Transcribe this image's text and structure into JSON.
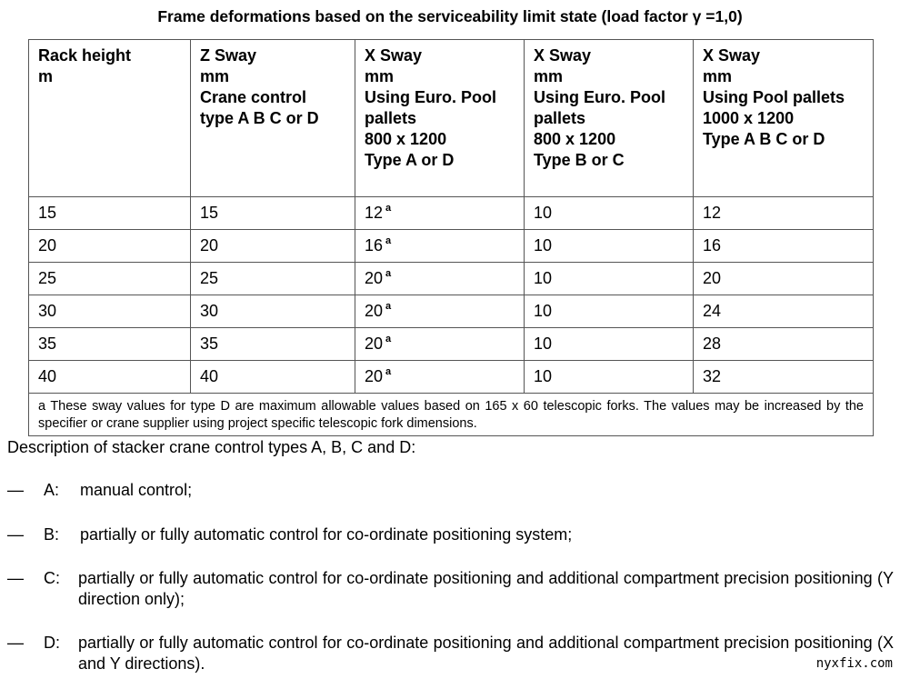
{
  "title": "Frame deformations based on the serviceability limit state (load factor γ =1,0)",
  "table": {
    "headers": [
      "Rack height\nm",
      "Z Sway\nmm\nCrane control\ntype A B C or D",
      "X Sway\nmm\nUsing Euro. Pool\npallets\n800 x 1200\nType A or D",
      "X Sway\nmm\nUsing Euro. Pool\npallets\n800 x 1200\nType B or C",
      "X Sway\nmm\nUsing Pool pallets\n1000 x 1200\nType A B C or D"
    ],
    "rows": [
      [
        "15",
        "15",
        "12",
        "10",
        "12"
      ],
      [
        "20",
        "20",
        "16",
        "10",
        "16"
      ],
      [
        "25",
        "25",
        "20",
        "10",
        "20"
      ],
      [
        "30",
        "30",
        "20",
        "10",
        "24"
      ],
      [
        "35",
        "35",
        "20",
        "10",
        "28"
      ],
      [
        "40",
        "40",
        "20",
        "10",
        "32"
      ]
    ],
    "footnote_marker": "a",
    "footnote": "a    These sway values for type D are maximum allowable values based on 165 x 60 telescopic forks. The values may be increased by the specifier or crane supplier using project specific telescopic fork dimensions."
  },
  "description": "Description of stacker crane control types A, B, C and D:",
  "items": [
    {
      "dash": "—",
      "letter": "A:",
      "text": "manual control;"
    },
    {
      "dash": "—",
      "letter": "B:",
      "text": "partially or fully automatic control for co-ordinate positioning system;"
    },
    {
      "dash": "—",
      "letter": "C:",
      "text": "partially or fully automatic control for co-ordinate positioning and additional compartment precision positioning (Y direction only);"
    },
    {
      "dash": "—",
      "letter": "D:",
      "text": "partially or fully automatic control for co-ordinate positioning and additional compartment precision positioning (X and Y directions)."
    }
  ],
  "watermark": "nyxfix.com"
}
